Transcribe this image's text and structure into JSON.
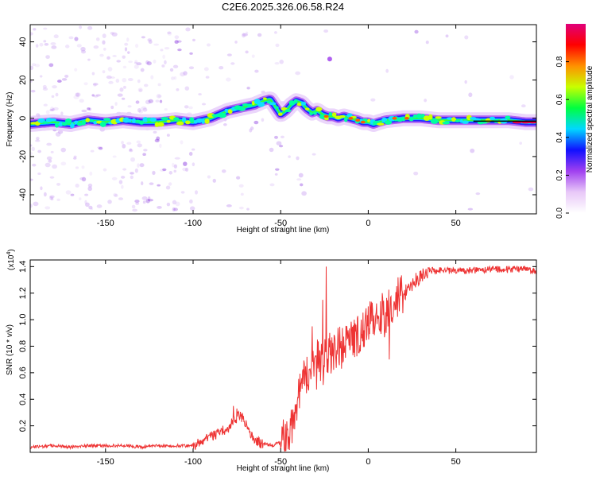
{
  "chart_data": [
    {
      "type": "heatmap",
      "title": "C2E6.2025.326.06.58.R24",
      "xlabel": "Height of straight line (km)",
      "ylabel": "Frequency (Hz)",
      "xlim": [
        -193,
        96
      ],
      "ylim": [
        -50,
        49
      ],
      "x_ticks": [
        -150,
        -100,
        -50,
        0,
        50
      ],
      "x_tick_labels": [
        "-150",
        "-100",
        "-50",
        "0",
        "50"
      ],
      "y_ticks": [
        -40,
        -20,
        0,
        20,
        40
      ],
      "y_tick_labels": [
        "-40",
        "-20",
        "0",
        "20",
        "40"
      ],
      "grid": false,
      "colorbar": {
        "label": "Normalized spectral amplitude",
        "range": [
          0,
          1
        ],
        "ticks": [
          0.0,
          0.2,
          0.4,
          0.6,
          0.8
        ],
        "tick_labels": [
          "0.0",
          "0.2",
          "0.4",
          "0.6",
          "0.8"
        ],
        "colors": [
          "#ffffff",
          "#e8c8f8",
          "#a040f0",
          "#1010ff",
          "#00d8ff",
          "#00ff40",
          "#c8ff00",
          "#ff9000",
          "#ff0000",
          "#e0007a"
        ]
      },
      "ridge": {
        "x": [
          -193,
          -180,
          -170,
          -160,
          -150,
          -140,
          -130,
          -120,
          -110,
          -100,
          -95,
          -90,
          -85,
          -80,
          -75,
          -70,
          -65,
          -60,
          -56,
          -53,
          -50,
          -47,
          -44,
          -41,
          -38,
          -35,
          -32,
          -29,
          -26,
          -23,
          -20,
          -17,
          -14,
          -10,
          -6,
          -3,
          0,
          3,
          6,
          10,
          20,
          30,
          40,
          50,
          60,
          70,
          80,
          90,
          96
        ],
        "freq": [
          -3,
          -2,
          -3,
          -1,
          -2,
          -1,
          -2,
          -2,
          -1,
          -2,
          -1,
          0,
          2,
          4,
          5,
          6,
          7,
          9,
          10,
          6,
          2,
          4,
          7,
          9,
          8,
          5,
          3,
          4,
          2,
          1,
          1,
          0,
          1,
          0,
          -1,
          -2,
          -2,
          -3,
          -2,
          -1,
          0,
          0,
          -1,
          -1,
          -1,
          -1,
          -1,
          -2,
          -2
        ]
      }
    },
    {
      "type": "line",
      "xlabel": "Height of straight line (km)",
      "ylabel": "SNR (10 * v/v)",
      "scale_label": "(x10",
      "scale_exp": "4",
      "scale_close": ")",
      "xlim": [
        -193,
        96
      ],
      "ylim": [
        0,
        1.45
      ],
      "x_ticks": [
        -150,
        -100,
        -50,
        0,
        50
      ],
      "x_tick_labels": [
        "-150",
        "-100",
        "-50",
        "0",
        "50"
      ],
      "y_ticks": [
        0.2,
        0.4,
        0.6,
        0.8,
        1.0,
        1.2,
        1.4
      ],
      "y_tick_labels": [
        "0.2",
        "0.4",
        "0.6",
        "0.8",
        "1.0",
        "1.2",
        "1.4"
      ],
      "line_color": "#ee3333",
      "series": [
        {
          "name": "SNR",
          "x": [
            -193,
            -180,
            -170,
            -160,
            -150,
            -140,
            -130,
            -120,
            -110,
            -100,
            -95,
            -90,
            -85,
            -80,
            -76,
            -73,
            -70,
            -66,
            -62,
            -58,
            -55,
            -50,
            -46,
            -43,
            -40,
            -38,
            -36,
            -34,
            -32,
            -30,
            -28,
            -26,
            -24,
            -22,
            -20,
            -17,
            -14,
            -11,
            -8,
            -5,
            -2,
            0,
            3,
            6,
            9,
            12,
            15,
            18,
            21,
            24,
            27,
            30,
            33,
            36,
            40,
            50,
            60,
            70,
            80,
            90,
            96
          ],
          "y": [
            0.04,
            0.05,
            0.04,
            0.05,
            0.05,
            0.05,
            0.04,
            0.05,
            0.05,
            0.05,
            0.08,
            0.12,
            0.15,
            0.18,
            0.25,
            0.28,
            0.22,
            0.12,
            0.07,
            0.06,
            0.05,
            0.08,
            0.12,
            0.25,
            0.4,
            0.52,
            0.6,
            0.5,
            0.68,
            0.58,
            0.72,
            0.62,
            0.78,
            0.7,
            0.74,
            0.8,
            0.78,
            0.92,
            0.86,
            0.9,
            0.92,
            0.98,
            1.02,
            1.05,
            1.0,
            1.08,
            1.12,
            1.18,
            1.2,
            1.26,
            1.3,
            1.33,
            1.35,
            1.37,
            1.37,
            1.37,
            1.37,
            1.38,
            1.38,
            1.38,
            1.36
          ]
        }
      ],
      "spikes": {
        "x": [
          -77,
          -75,
          -35,
          -32,
          -29,
          -26,
          -24,
          -22,
          -19,
          -17,
          -12,
          -8,
          -4,
          0,
          4,
          8,
          12
        ],
        "y": [
          0.35,
          0.33,
          0.72,
          0.95,
          0.85,
          1.15,
          1.4,
          0.9,
          0.85,
          0.88,
          0.9,
          1.0,
          1.0,
          1.1,
          0.96,
          1.2,
          0.7
        ]
      }
    }
  ]
}
